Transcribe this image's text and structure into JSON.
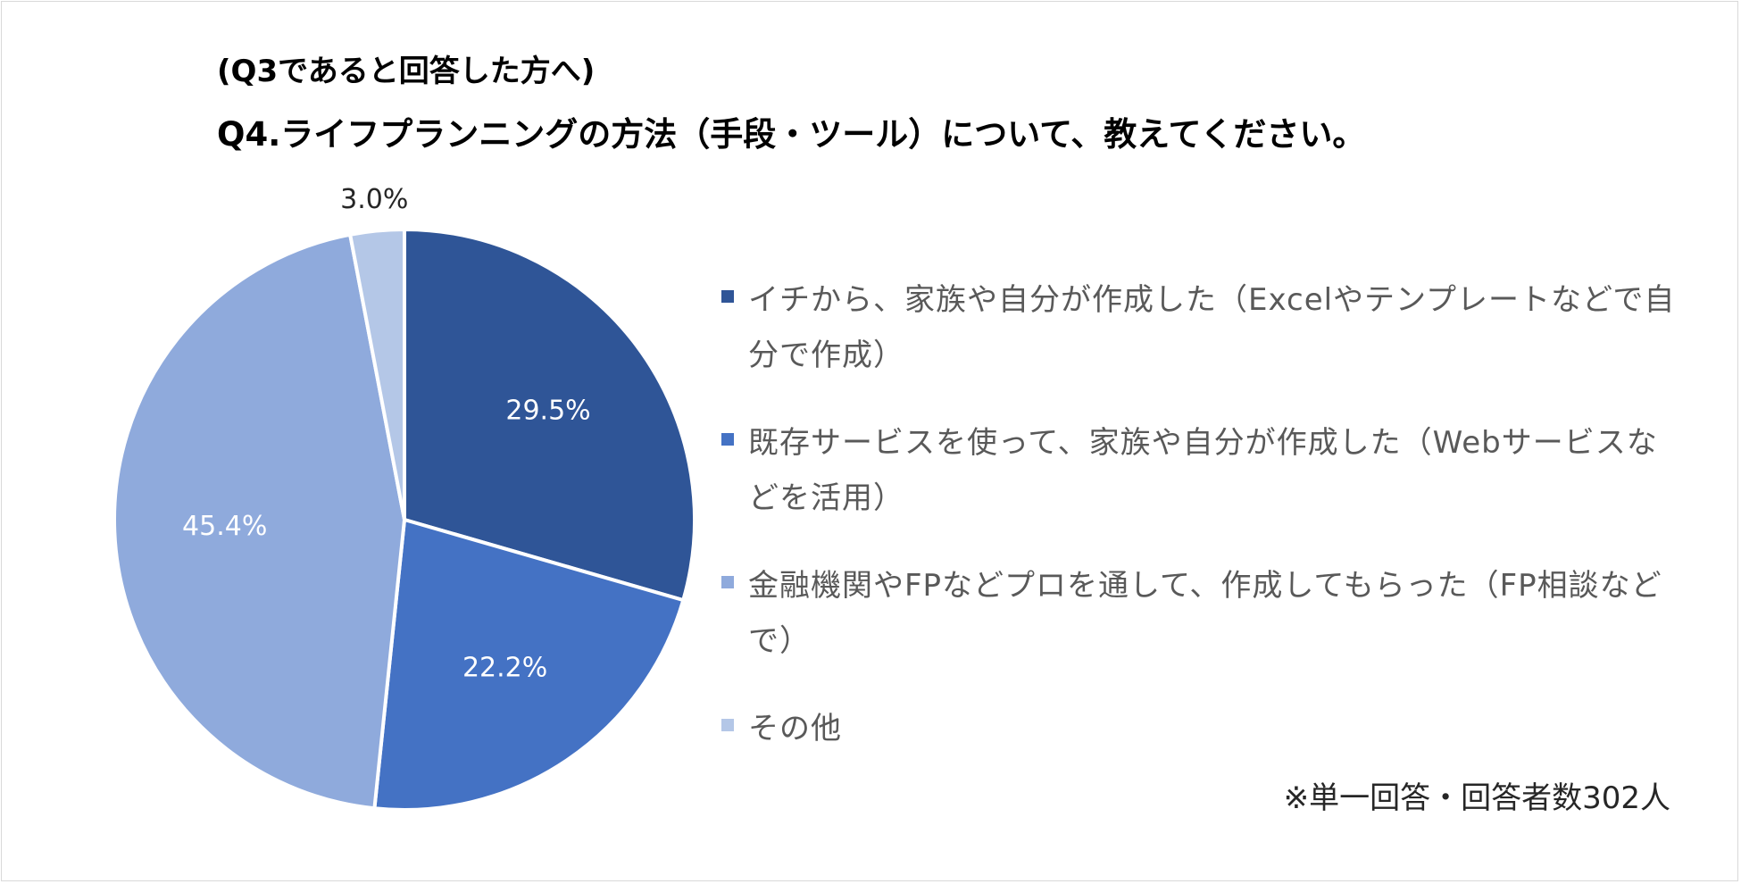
{
  "title": {
    "line1": "(Q3であると回答した方へ)",
    "line2": "Q4.ライフプランニングの方法（手段・ツール）について、教えてください。"
  },
  "chart_data": {
    "type": "pie",
    "title": "(Q3であると回答した方へ) Q4.ライフプランニングの方法（手段・ツール）について、教えてください。",
    "start_angle_deg": 0,
    "direction": "clockwise",
    "legend_position": "right",
    "slices": [
      {
        "label": "イチから、家族や自分が作成した（Excelやテンプレートなどで自分で作成）",
        "value": 29.5,
        "display": "29.5%",
        "color": "#2F5597",
        "label_color": "#ffffff",
        "label_placement": "inside"
      },
      {
        "label": "既存サービスを使って、家族や自分が作成した（Webサービスなどを活用）",
        "value": 22.2,
        "display": "22.2%",
        "color": "#4472C4",
        "label_color": "#ffffff",
        "label_placement": "inside"
      },
      {
        "label": "金融機関やFPなどプロを通して、作成してもらった（FP相談などで）",
        "value": 45.4,
        "display": "45.4%",
        "color": "#8FAADC",
        "label_color": "#ffffff",
        "label_placement": "inside"
      },
      {
        "label": "その他",
        "value": 3.0,
        "display": "3.0%",
        "color": "#B4C7E7",
        "label_color": "#262626",
        "label_placement": "outside"
      }
    ]
  },
  "note": "※単一回答・回答者数302人"
}
